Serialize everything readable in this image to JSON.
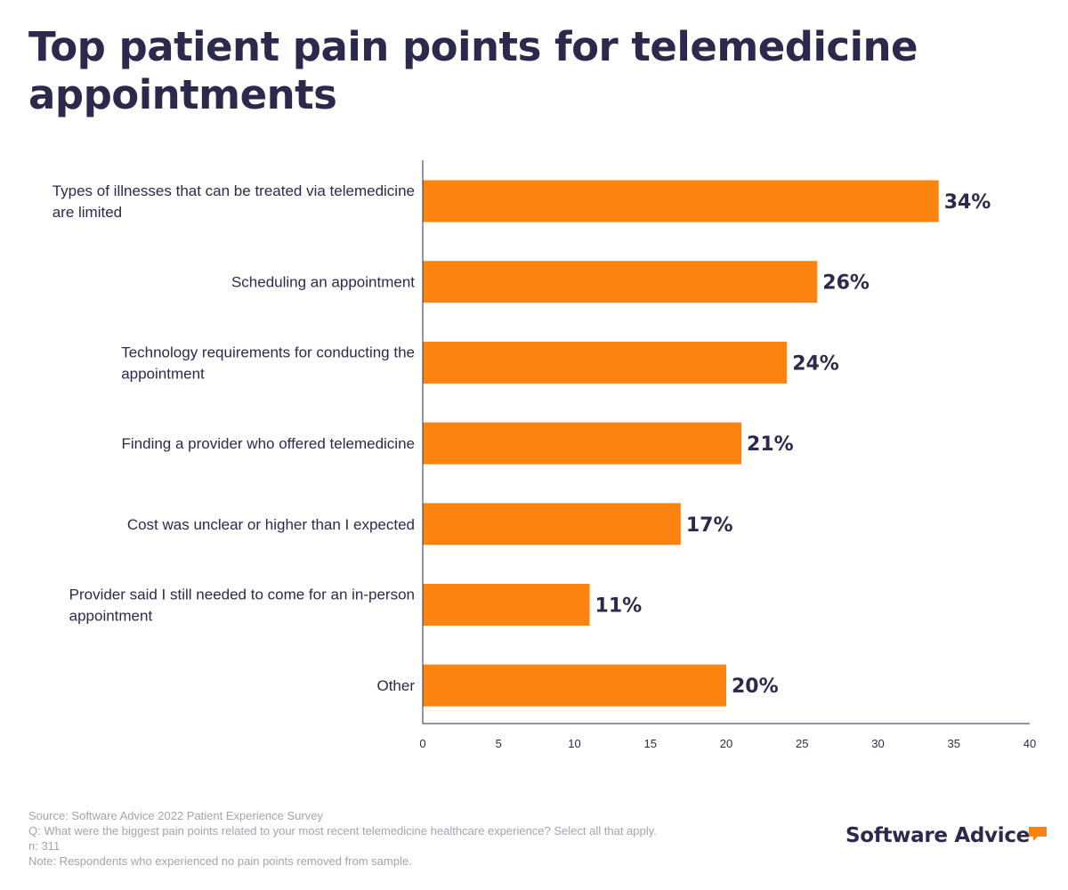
{
  "chart_data": {
    "type": "bar",
    "orientation": "horizontal",
    "title": "Top patient pain points for telemedicine appointments",
    "categories": [
      [
        "Types of illnesses that can be treated via telemedicine",
        "are limited"
      ],
      [
        "Scheduling an appointment"
      ],
      [
        "Technology requirements for conducting the",
        "appointment"
      ],
      [
        "Finding a provider who offered telemedicine"
      ],
      [
        "Cost was unclear or higher than I expected"
      ],
      [
        "Provider said I still needed to come for an in-person",
        "appointment"
      ],
      [
        "Other"
      ]
    ],
    "values": [
      34,
      26,
      24,
      21,
      17,
      11,
      20
    ],
    "value_labels": [
      "34%",
      "26%",
      "24%",
      "21%",
      "17%",
      "11%",
      "20%"
    ],
    "xlim": [
      0,
      40
    ],
    "xticks": [
      0,
      5,
      10,
      15,
      20,
      25,
      30,
      35,
      40
    ],
    "xlabel": "",
    "ylabel": "",
    "grid": false,
    "bar_color": "#fd8410",
    "text_color": "#2b2a4d"
  },
  "footer": {
    "source": "Source: Software Advice 2022 Patient Experience Survey",
    "question": "Q: What were the biggest pain points related to your most recent telemedicine healthcare experience? Select all that apply.",
    "n": "n: 311",
    "note": "Note: Respondents who experienced no pain points removed from sample."
  },
  "brand": {
    "name": "Software Advice",
    "icon": "speech-bubble-icon",
    "icon_color": "#fd8410"
  }
}
